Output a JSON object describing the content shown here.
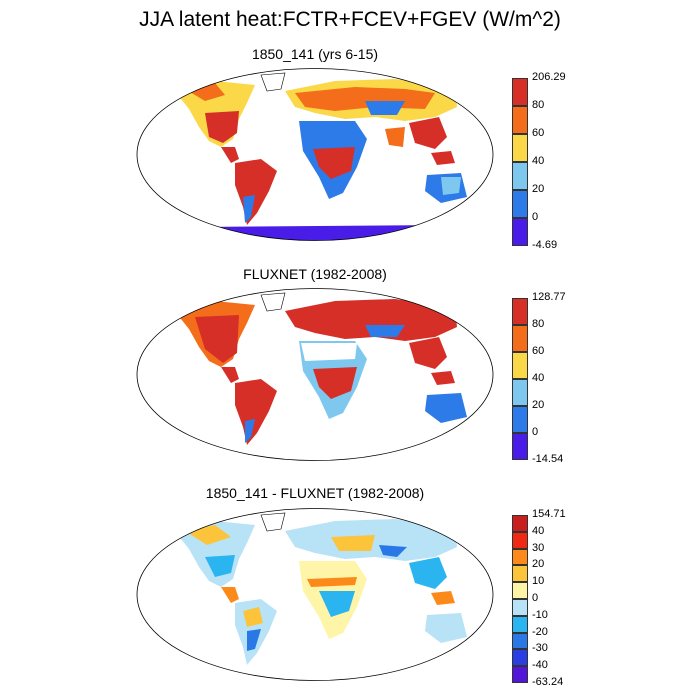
{
  "title": "JJA latent heat:FCTR+FCEV+FGEV (W/m^2)",
  "panels": [
    {
      "title": "1850_141 (yrs 6-15)",
      "colorbar": {
        "max_label": "206.29",
        "min_label": "-4.69",
        "ticks": [
          "80",
          "60",
          "40",
          "20",
          "0"
        ],
        "colors": [
          "#d62f27",
          "#f46d1b",
          "#fbd848",
          "#7ec8f0",
          "#2d7be8",
          "#4a1ce8"
        ]
      }
    },
    {
      "title": "FLUXNET (1982-2008)",
      "colorbar": {
        "max_label": "128.77",
        "min_label": "-14.54",
        "ticks": [
          "80",
          "60",
          "40",
          "20",
          "0"
        ],
        "colors": [
          "#d62f27",
          "#f46d1b",
          "#fbd848",
          "#7ec8f0",
          "#2d7be8",
          "#4a1ce8"
        ]
      }
    },
    {
      "title": "1850_141 - FLUXNET (1982-2008)",
      "colorbar": {
        "max_label": "154.71",
        "min_label": "-63.24",
        "ticks": [
          "40",
          "30",
          "20",
          "10",
          "0",
          "-10",
          "-20",
          "-30",
          "-40"
        ],
        "colors": [
          "#c81e1e",
          "#ee2a14",
          "#fb8a1a",
          "#fbc43a",
          "#fff5a8",
          "#b8e3f6",
          "#2ab4f0",
          "#2a78e6",
          "#2a3ee2",
          "#5216d8"
        ]
      }
    }
  ]
}
